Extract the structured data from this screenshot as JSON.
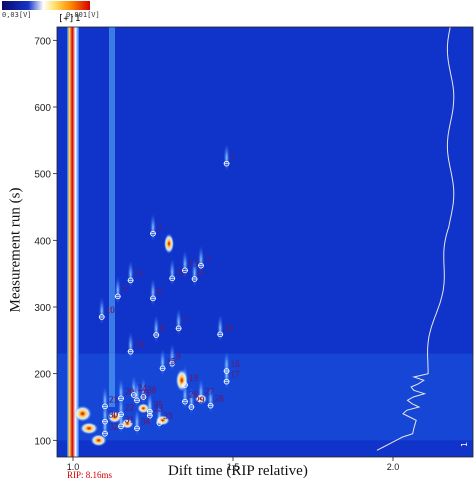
{
  "colorbar": {
    "min_label": "0,03[V]",
    "max_label": "0,801[V]"
  },
  "header": {
    "rip_marker": "[+]",
    "rip_index": "1"
  },
  "rip_label": "RIP: 8.16ms",
  "chart_data": {
    "type": "heatmap",
    "title": "",
    "xlabel": "Dift time (RIP relative)",
    "ylabel": "Measurement run (s)",
    "xlim": [
      0.95,
      2.25
    ],
    "ylim": [
      75,
      720
    ],
    "x_ticks": [
      1.0,
      1.5,
      2.0
    ],
    "x_tick_labels": [
      "1.0",
      "1.5",
      "2.0"
    ],
    "y_ticks": [
      100,
      200,
      300,
      400,
      500,
      600,
      700
    ],
    "y_tick_labels": [
      "100",
      "200",
      "300",
      "400",
      "500",
      "600",
      "700"
    ],
    "colorscale": [
      "#0a0a6a",
      "#1535c8",
      "#ffffff",
      "#ffe066",
      "#ff8a00",
      "#d40000"
    ],
    "rip_line_x": 1.0,
    "spectrum_curve_label": "1",
    "markers": [
      {
        "label": "1",
        "x": 1.48,
        "y": 515
      },
      {
        "label": "2",
        "x": 1.25,
        "y": 410
      },
      {
        "label": "3",
        "x": 1.4,
        "y": 362
      },
      {
        "label": "4",
        "x": 1.38,
        "y": 342
      },
      {
        "label": "5",
        "x": 1.14,
        "y": 316
      },
      {
        "label": "6",
        "x": 1.25,
        "y": 313
      },
      {
        "label": "7",
        "x": 1.33,
        "y": 268
      },
      {
        "label": "8",
        "x": 1.26,
        "y": 258
      },
      {
        "label": "9",
        "x": 1.31,
        "y": 215
      },
      {
        "label": "10",
        "x": 1.09,
        "y": 285
      },
      {
        "label": "11",
        "x": 1.18,
        "y": 340
      },
      {
        "label": "12",
        "x": 1.31,
        "y": 343
      },
      {
        "label": "13",
        "x": 1.35,
        "y": 355
      },
      {
        "label": "14",
        "x": 1.46,
        "y": 259
      },
      {
        "label": "15",
        "x": 1.28,
        "y": 208
      },
      {
        "label": "16",
        "x": 1.48,
        "y": 204
      },
      {
        "label": "17",
        "x": 1.48,
        "y": 188
      },
      {
        "label": "18",
        "x": 1.18,
        "y": 233
      },
      {
        "label": "19",
        "x": 1.35,
        "y": 183
      },
      {
        "label": "20",
        "x": 1.15,
        "y": 163
      },
      {
        "label": "21",
        "x": 1.1,
        "y": 151
      },
      {
        "label": "22",
        "x": 1.15,
        "y": 139
      },
      {
        "label": "23",
        "x": 1.24,
        "y": 137
      },
      {
        "label": "24",
        "x": 1.19,
        "y": 168
      },
      {
        "label": "25",
        "x": 1.2,
        "y": 160
      },
      {
        "label": "26",
        "x": 1.35,
        "y": 158
      },
      {
        "label": "27",
        "x": 1.4,
        "y": 163
      },
      {
        "label": "28",
        "x": 1.43,
        "y": 152
      },
      {
        "label": "29",
        "x": 1.37,
        "y": 150
      },
      {
        "label": "30",
        "x": 1.1,
        "y": 128
      },
      {
        "label": "31",
        "x": 1.15,
        "y": 121
      },
      {
        "label": "32",
        "x": 1.1,
        "y": 110
      },
      {
        "label": "33",
        "x": 1.27,
        "y": 126
      },
      {
        "label": "34",
        "x": 1.2,
        "y": 118
      },
      {
        "label": "35",
        "x": 1.24,
        "y": 143
      },
      {
        "label": "36",
        "x": 1.22,
        "y": 165
      }
    ]
  }
}
